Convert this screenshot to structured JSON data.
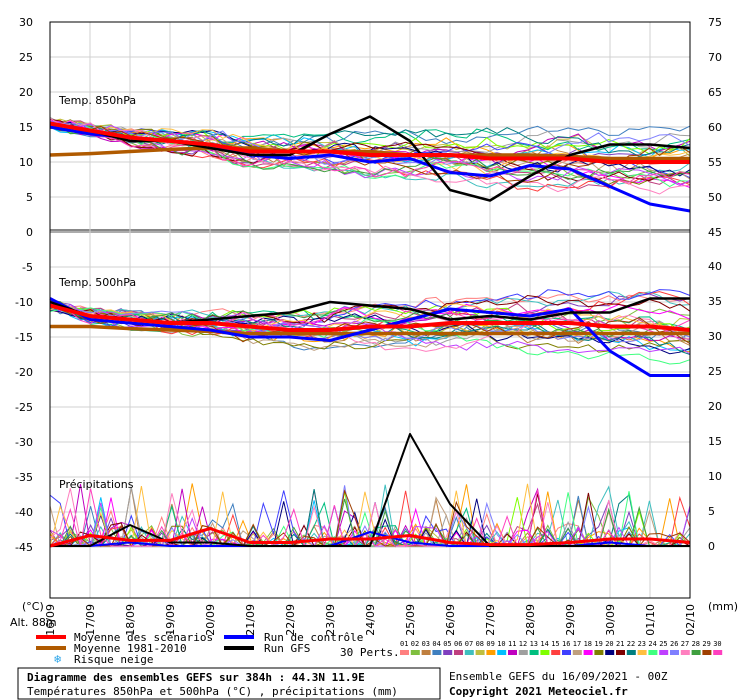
{
  "chart_data": {
    "type": "line",
    "left_axis_unit": "(°C)",
    "right_axis_unit": "(mm)",
    "left_ticks": [
      30,
      25,
      20,
      15,
      10,
      5,
      0,
      -5,
      -10,
      -15,
      -20,
      -25,
      -30,
      -35,
      -40,
      -45
    ],
    "right_ticks_top": [
      75,
      70,
      65,
      60,
      55,
      50,
      45
    ],
    "right_ticks_bottom": [
      40,
      35,
      30,
      25,
      20,
      15,
      10,
      5,
      0
    ],
    "x_dates": [
      "16/09",
      "17/09",
      "18/09",
      "19/09",
      "20/09",
      "21/09",
      "22/09",
      "23/09",
      "24/09",
      "25/09",
      "26/09",
      "27/09",
      "28/09",
      "29/09",
      "30/09",
      "01/10",
      "02/10"
    ],
    "panel_labels": {
      "t850": "Temp. 850hPa",
      "t500": "Temp. 500hPa",
      "precip": "Précipitations"
    },
    "altitude": "Alt. 88m",
    "legend": {
      "mean": "Moyenne des scénarios",
      "climo": "Moyenne 1981-2010",
      "snow": "Risque neige",
      "control": "Run de contrôle",
      "gfs": "Run GFS",
      "perts": "30 Perts."
    },
    "pert_numbers": [
      "01",
      "02",
      "03",
      "04",
      "05",
      "06",
      "07",
      "08",
      "09",
      "10",
      "11",
      "12",
      "13",
      "14",
      "15",
      "16",
      "17",
      "18",
      "19",
      "20",
      "21",
      "22",
      "23",
      "24",
      "25",
      "26",
      "27",
      "28",
      "29",
      "30"
    ],
    "colors": {
      "mean": "#ff0000",
      "climo": "#b05a00",
      "control": "#0000ff",
      "gfs": "#000000",
      "perts": [
        "#ff7f7f",
        "#7fbf3f",
        "#bf7f3f",
        "#3f7fbf",
        "#7f3fbf",
        "#bf3f7f",
        "#3fbfbf",
        "#bfbf3f",
        "#ff9f00",
        "#00bfff",
        "#bf00bf",
        "#9f9f9f",
        "#00bf7f",
        "#7fff00",
        "#ff3f3f",
        "#3f3fff",
        "#bf9f7f",
        "#ff00ff",
        "#7f7f00",
        "#00007f",
        "#7f0000",
        "#007f7f",
        "#ffbf3f",
        "#3fff7f",
        "#bf3fff",
        "#7f7fff",
        "#ff7fbf",
        "#3f9f3f",
        "#9f3f00",
        "#ff3fbf"
      ]
    },
    "series": {
      "t850_mean": [
        15.5,
        14.5,
        13.5,
        13.0,
        12.5,
        11.5,
        11.5,
        11.5,
        11.0,
        11.0,
        11.0,
        10.5,
        10.5,
        10.5,
        10.0,
        10.0,
        10.0
      ],
      "t850_climo": [
        11.0,
        11.2,
        11.5,
        11.8,
        12.0,
        12.0,
        11.5,
        11.5,
        11.5,
        11.0,
        11.0,
        11.0,
        11.0,
        10.8,
        10.5,
        10.5,
        10.5
      ],
      "t850_control": [
        15.0,
        14.0,
        13.5,
        13.0,
        12.5,
        11.0,
        10.5,
        11.0,
        10.0,
        10.5,
        8.5,
        8.0,
        9.5,
        9.0,
        6.5,
        4.0,
        3.0
      ],
      "t850_gfs": [
        15.5,
        14.5,
        13.0,
        13.0,
        12.0,
        11.0,
        11.0,
        14.0,
        16.5,
        13.0,
        6.0,
        4.5,
        8.0,
        11.0,
        12.5,
        12.5,
        12.0
      ],
      "t500_mean": [
        -10.5,
        -12.0,
        -12.5,
        -13.0,
        -13.0,
        -13.5,
        -14.0,
        -14.0,
        -13.5,
        -13.5,
        -13.0,
        -13.0,
        -13.0,
        -13.0,
        -13.5,
        -13.5,
        -14.0
      ],
      "t500_climo": [
        -13.5,
        -13.5,
        -13.8,
        -14.0,
        -14.2,
        -14.5,
        -14.5,
        -14.5,
        -14.5,
        -14.5,
        -14.5,
        -14.5,
        -14.5,
        -14.5,
        -14.5,
        -14.5,
        -14.5
      ],
      "t500_control": [
        -9.5,
        -12.5,
        -13.0,
        -13.5,
        -14.0,
        -15.0,
        -15.0,
        -15.5,
        -14.0,
        -12.5,
        -11.0,
        -11.5,
        -12.0,
        -11.0,
        -17.0,
        -20.5,
        -20.5
      ],
      "t500_gfs": [
        -10.0,
        -12.0,
        -12.5,
        -13.0,
        -12.5,
        -12.0,
        -11.5,
        -10.0,
        -10.5,
        -11.0,
        -12.5,
        -12.0,
        -12.5,
        -11.5,
        -11.5,
        -9.5,
        -9.5
      ],
      "precip_mean": [
        0,
        1.5,
        0.8,
        0.8,
        2.5,
        0.5,
        0.5,
        1.0,
        1.0,
        1.5,
        0.5,
        0.2,
        0.2,
        0.5,
        1.0,
        1.0,
        0.5
      ],
      "precip_gfs": [
        0,
        0,
        3.0,
        0.5,
        0.5,
        0,
        0,
        0,
        0,
        16.0,
        6.0,
        0,
        0,
        0,
        0,
        0,
        0
      ],
      "precip_control": [
        0,
        0,
        0.5,
        0,
        0,
        0,
        0,
        0,
        2.0,
        0.5,
        0,
        0,
        0,
        0,
        0.5,
        0,
        0
      ]
    }
  },
  "footer": {
    "title": "Diagramme des ensembles GEFS sur 384h : 44.3N 11.9E",
    "subtitle": "Températures 850hPa et 500hPa (°C) , précipitations (mm)",
    "run_info": "Ensemble GEFS du 16/09/2021 - 00Z",
    "copyright": "Copyright 2021 Meteociel.fr"
  }
}
